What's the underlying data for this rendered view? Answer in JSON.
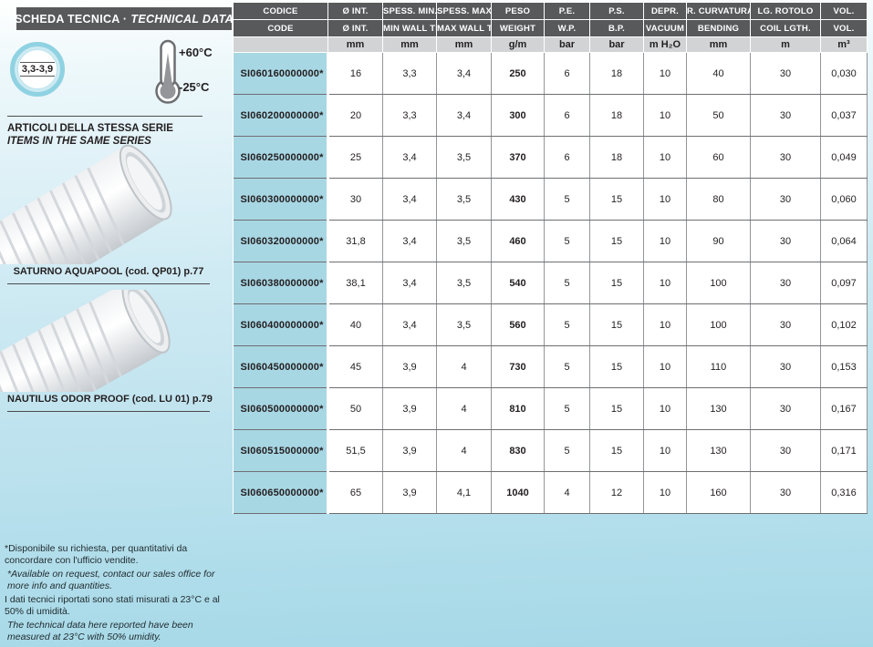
{
  "banner": {
    "title_it": "SCHEDA TECNICA ·",
    "title_en": "TECHNICAL DATA"
  },
  "sidebar": {
    "wall_thickness_badge": "3,3-3,9",
    "temp_max": "+60°C",
    "temp_min": "-25°C",
    "series_title_it": "ARTICOLI DELLA STESSA SERIE",
    "series_title_en": "ITEMS IN THE SAME SERIES",
    "products": [
      {
        "caption": "SATURNO AQUAPOOL (cod. QP01) p.77"
      },
      {
        "caption": "NAUTILUS ODOR PROOF (cod. LU 01) p.79"
      }
    ],
    "footnotes": {
      "note1_it": "*Disponibile su richiesta, per quantitativi da concordare con l'ufficio vendite.",
      "note1_en": "*Available on request, contact our sales office for more info and quantities.",
      "note2_it": "I dati tecnici riportati sono stati misurati a 23°C e al 50% di umidità.",
      "note2_en": "The technical data here reported have been measured at 23°C with 50% umidity."
    }
  },
  "table": {
    "header_it": [
      "CODICE",
      "Ø INT.",
      "SPESS. MIN.",
      "SPESS. MAX.",
      "PESO",
      "P.E.",
      "P.S.",
      "DEPR.",
      "R. CURVATURA",
      "LG. ROTOLO",
      "VOL."
    ],
    "header_en": [
      "CODE",
      "Ø INT.",
      "MIN WALL TH.",
      "MAX WALL TH.",
      "WEIGHT",
      "W.P.",
      "B.P.",
      "VACUUM",
      "BENDING",
      "COIL LGTH.",
      "VOL."
    ],
    "units": [
      "",
      "mm",
      "mm",
      "mm",
      "g/m",
      "bar",
      "bar",
      "m H₂O",
      "mm",
      "m",
      "m³"
    ],
    "rows": [
      [
        "SI060160000000*",
        "16",
        "3,3",
        "3,4",
        "250",
        "6",
        "18",
        "10",
        "40",
        "30",
        "0,030"
      ],
      [
        "SI060200000000*",
        "20",
        "3,3",
        "3,4",
        "300",
        "6",
        "18",
        "10",
        "50",
        "30",
        "0,037"
      ],
      [
        "SI060250000000*",
        "25",
        "3,4",
        "3,5",
        "370",
        "6",
        "18",
        "10",
        "60",
        "30",
        "0,049"
      ],
      [
        "SI060300000000*",
        "30",
        "3,4",
        "3,5",
        "430",
        "5",
        "15",
        "10",
        "80",
        "30",
        "0,060"
      ],
      [
        "SI060320000000*",
        "31,8",
        "3,4",
        "3,5",
        "460",
        "5",
        "15",
        "10",
        "90",
        "30",
        "0,064"
      ],
      [
        "SI060380000000*",
        "38,1",
        "3,4",
        "3,5",
        "540",
        "5",
        "15",
        "10",
        "100",
        "30",
        "0,097"
      ],
      [
        "SI060400000000*",
        "40",
        "3,4",
        "3,5",
        "560",
        "5",
        "15",
        "10",
        "100",
        "30",
        "0,102"
      ],
      [
        "SI060450000000*",
        "45",
        "3,9",
        "4",
        "730",
        "5",
        "15",
        "10",
        "110",
        "30",
        "0,153"
      ],
      [
        "SI060500000000*",
        "50",
        "3,9",
        "4",
        "810",
        "5",
        "15",
        "10",
        "130",
        "30",
        "0,167"
      ],
      [
        "SI060515000000*",
        "51,5",
        "3,9",
        "4",
        "830",
        "5",
        "15",
        "10",
        "130",
        "30",
        "0,171"
      ],
      [
        "SI060650000000*",
        "65",
        "3,9",
        "4,1",
        "1040",
        "4",
        "12",
        "10",
        "160",
        "30",
        "0,316"
      ]
    ]
  },
  "colors": {
    "header_gray": "#58595b",
    "units_gray": "#d1d3d4",
    "code_column_cyan": "#a8d7e4",
    "background_blue": "#a5d8e7"
  }
}
